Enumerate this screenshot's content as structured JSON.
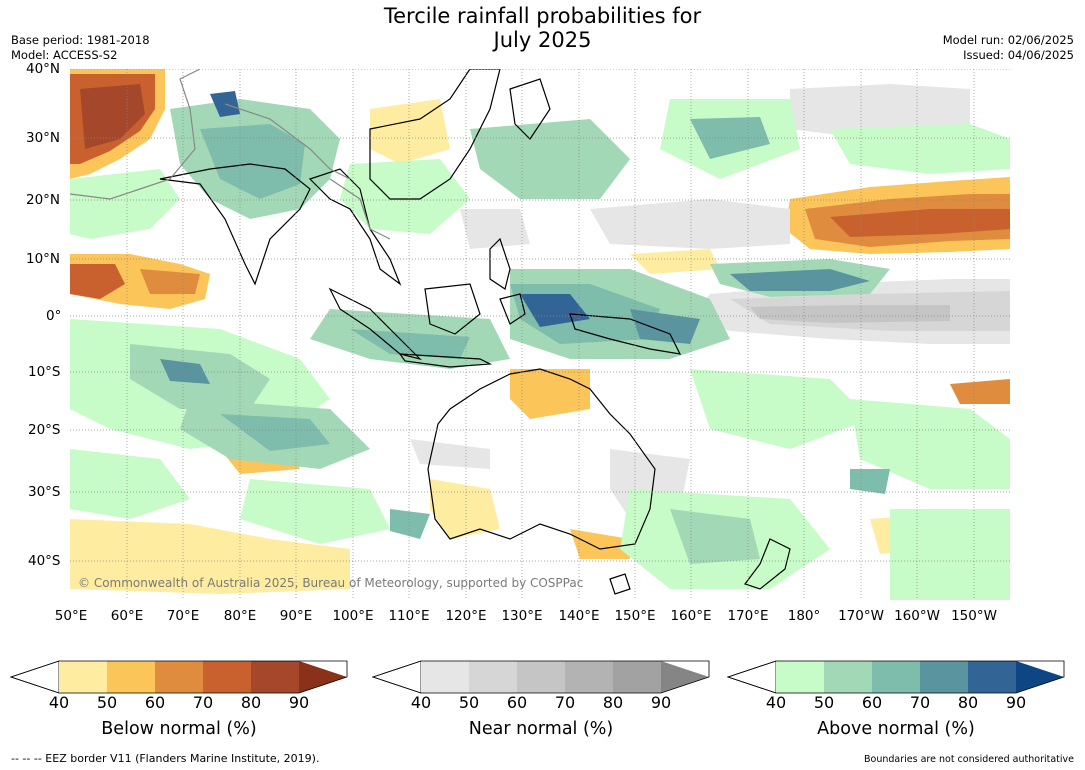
{
  "title_line1": "Tercile rainfall probabilities for",
  "title_line2": "July 2025",
  "base_period": "Base period: 1981-2018",
  "model": "Model: ACCESS-S2",
  "model_run": "Model run: 02/06/2025",
  "issued": "Issued: 04/06/2025",
  "copyright": "© Commonwealth of Australia 2025, Bureau of Meteorology, supported by COSPPac",
  "lat_labels": [
    "40°N",
    "30°N",
    "20°N",
    "10°N",
    "0°",
    "10°S",
    "20°S",
    "30°S",
    "40°S"
  ],
  "lon_labels": [
    "50°E",
    "60°E",
    "70°E",
    "80°E",
    "90°E",
    "100°E",
    "110°E",
    "120°E",
    "130°E",
    "140°E",
    "150°E",
    "160°E",
    "170°E",
    "180°",
    "170°W",
    "160°W",
    "150°W"
  ],
  "colorbars": [
    {
      "title": "Below normal (%)",
      "ticks": [
        "40",
        "50",
        "60",
        "70",
        "80",
        "90"
      ],
      "colors": [
        "#ffffff",
        "#feeda0",
        "#fcc55a",
        "#df8c3e",
        "#c8612e",
        "#a4472a",
        "#8a3119"
      ]
    },
    {
      "title": "Near normal (%)",
      "ticks": [
        "40",
        "50",
        "60",
        "70",
        "80",
        "90"
      ],
      "colors": [
        "#ffffff",
        "#e6e6e6",
        "#d6d6d6",
        "#c5c5c5",
        "#b3b3b3",
        "#a2a2a2",
        "#858585"
      ]
    },
    {
      "title": "Above normal (%)",
      "ticks": [
        "40",
        "50",
        "60",
        "70",
        "80",
        "90"
      ],
      "colors": [
        "#ffffff",
        "#c7fbc7",
        "#a3d8b6",
        "#7ebcab",
        "#5a949f",
        "#326496",
        "#0e4684"
      ]
    }
  ],
  "footer_left": "--  --  -- EEZ border V11 (Flanders Marine Institute, 2019).",
  "footer_right": "Boundaries are not considered authoritative"
}
